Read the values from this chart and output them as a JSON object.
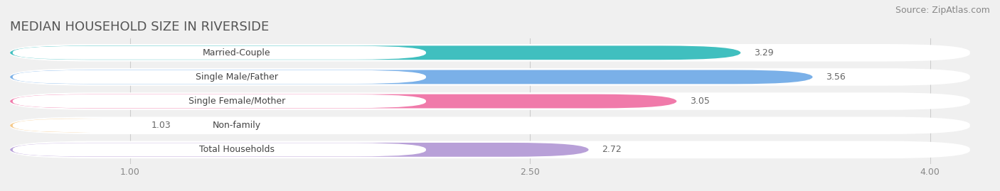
{
  "title": "MEDIAN HOUSEHOLD SIZE IN RIVERSIDE",
  "source": "Source: ZipAtlas.com",
  "categories": [
    "Married-Couple",
    "Single Male/Father",
    "Single Female/Mother",
    "Non-family",
    "Total Households"
  ],
  "values": [
    3.29,
    3.56,
    3.05,
    1.03,
    2.72
  ],
  "bar_colors": [
    "#40bfbf",
    "#7ab0e8",
    "#f07aaa",
    "#f5c98a",
    "#b8a0d8"
  ],
  "xlim_min": 0.55,
  "xlim_max": 4.15,
  "xticks": [
    1.0,
    2.5,
    4.0
  ],
  "title_fontsize": 13,
  "source_fontsize": 9,
  "label_fontsize": 9,
  "value_fontsize": 9,
  "tick_fontsize": 9,
  "background_color": "#f0f0f0",
  "bar_bg_color": "#e8e8e8"
}
